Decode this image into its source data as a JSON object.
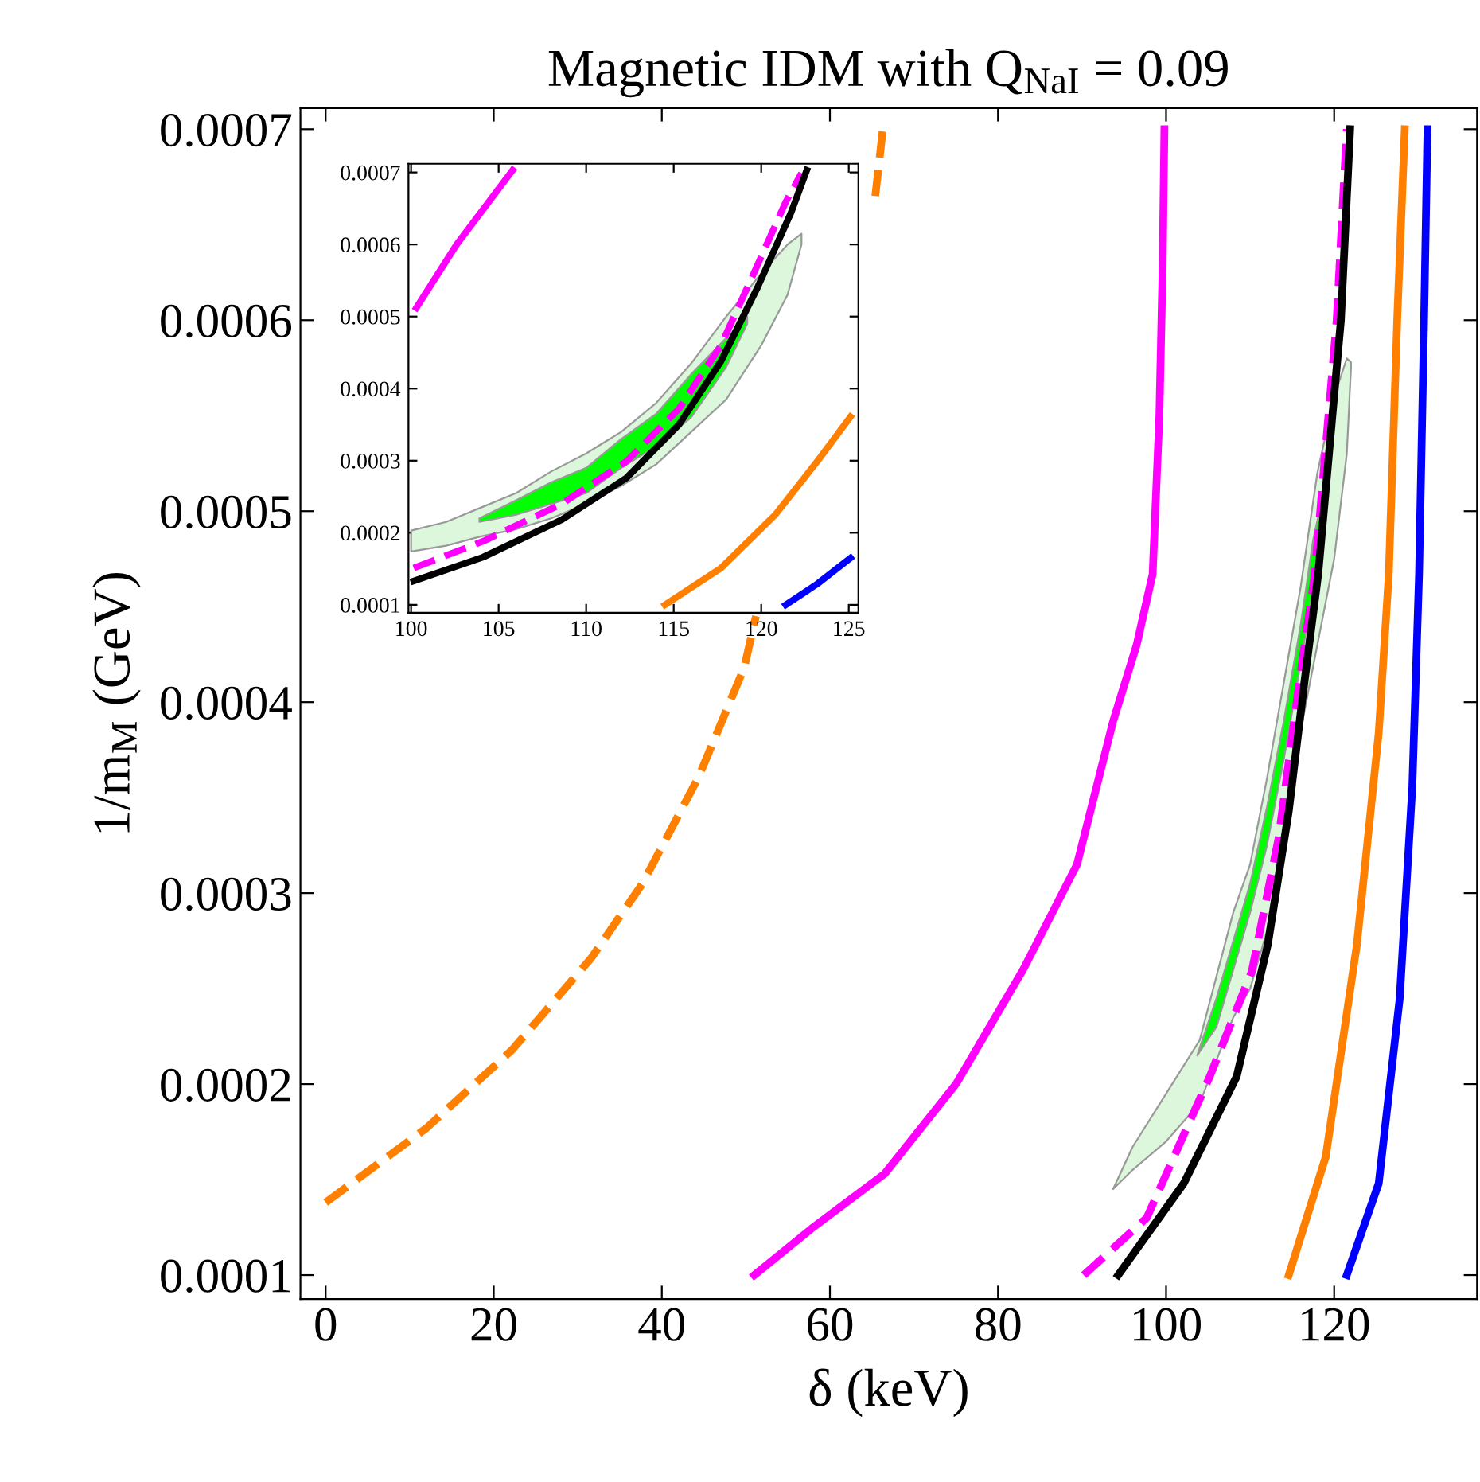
{
  "chart_data": [
    {
      "type": "line",
      "title": "Magnetic IDM with Q$_{NaI}$ = 0.09",
      "xlabel": "δ (keV)",
      "ylabel": "1/m$_{M}$ (GeV)",
      "xlim": [
        -3,
        137
      ],
      "ylim": [
        8.75e-05,
        0.000711
      ],
      "xticks": [
        0,
        20,
        40,
        60,
        80,
        100,
        120
      ],
      "yticks": [
        0.0001,
        0.0002,
        0.0003,
        0.0004,
        0.0005,
        0.0006,
        0.0007
      ],
      "grid": false,
      "legend": false,
      "series": [
        {
          "type": "area",
          "color": "#dcf7dc",
          "x": [
            93.7,
            96,
            100,
            104,
            108,
            110,
            112,
            114,
            116,
            118,
            120,
            121.5,
            122
          ],
          "values": [
            null,
            null,
            null,
            null,
            null,
            null,
            null,
            null,
            null,
            null,
            null,
            null,
            null
          ],
          "lower": [
            0.000145,
            0.000155,
            0.00017,
            0.00019,
            0.000235,
            0.00025,
            0.00028,
            0.00033,
            0.000385,
            0.00043,
            0.000475,
            0.00053,
            0.000575
          ],
          "upper": [
            0.000145,
            0.000167,
            0.000195,
            0.000223,
            0.00029,
            0.000315,
            0.00036,
            0.00041,
            0.00046,
            0.00052,
            0.00056,
            0.00058,
            0.000578
          ]
        },
        {
          "type": "area",
          "color": "#00ff00",
          "x": [
            103.7,
            106,
            108,
            110,
            112,
            114,
            116,
            117.5,
            118.5
          ],
          "values": [
            null,
            null,
            null,
            null,
            null,
            null,
            null,
            null,
            null
          ],
          "lower": [
            0.000215,
            0.00023,
            0.00026,
            0.00029,
            0.000325,
            0.00037,
            0.00042,
            0.00046,
            0.0005
          ],
          "upper": [
            0.000215,
            0.000245,
            0.000275,
            0.000305,
            0.000345,
            0.00039,
            0.00044,
            0.000485,
            0.000505
          ]
        },
        {
          "color": "#ff8000",
          "line_style": "dashed",
          "x": [
            0,
            12,
            22.2,
            31.6,
            37.7,
            44.4,
            49.8,
            51.2,
            58,
            65.4,
            66.3
          ],
          "values": [
            0.000138,
            0.000177,
            0.000218,
            0.000266,
            0.000305,
            0.000361,
            0.000418,
            0.000445,
            null,
            0.000665,
            0.0007
          ]
        },
        {
          "color": "#ff00ff",
          "line_style": "solid",
          "x": [
            51,
            58,
            66.5,
            75,
            83,
            89.4,
            93.7,
            96.5,
            98.4,
            99.2,
            99.6,
            99.8
          ],
          "values": [
            0.0001,
            0.000125,
            0.000153,
            0.0002,
            0.00026,
            0.000315,
            0.00039,
            0.00043,
            0.000467,
            0.00055,
            0.00063,
            0.0007
          ]
        },
        {
          "color": "#ff00ff",
          "line_style": "dashed",
          "x": [
            90.2,
            97.7,
            105.2,
            110.2,
            113.4,
            115.9,
            117.7,
            120.3,
            121.5
          ],
          "values": [
            0.0001,
            0.00013,
            0.000204,
            0.000259,
            0.000329,
            0.000412,
            0.000467,
            0.0006,
            0.0007
          ]
        },
        {
          "color": "#000000",
          "line_style": "solid",
          "x": [
            94.3,
            102.1,
            108.4,
            112.1,
            114.6,
            116.5,
            118.1,
            120.8,
            121.9
          ],
          "values": [
            0.0001,
            0.000148,
            0.000204,
            0.000273,
            0.000343,
            0.000412,
            0.000467,
            0.0006,
            0.0007
          ]
        },
        {
          "color": "#ff8000",
          "line_style": "solid",
          "x": [
            114.6,
            119.0,
            122.7,
            125.3,
            126.5,
            127.5,
            128.4
          ],
          "values": [
            0.0001,
            0.000162,
            0.000273,
            0.000384,
            0.000467,
            0.0006,
            0.0007
          ]
        },
        {
          "color": "#0000ff",
          "line_style": "solid",
          "x": [
            121.5,
            125.3,
            127.8,
            129.3,
            130.1,
            130.7,
            131.1
          ],
          "values": [
            0.0001,
            0.000148,
            0.000245,
            0.000356,
            0.000467,
            0.0006,
            0.0007
          ]
        }
      ]
    },
    {
      "type": "line",
      "xlim": [
        99.85,
        125.55
      ],
      "ylim": [
        8.89e-05,
        0.000712
      ],
      "xticks": [
        100,
        105,
        110,
        115,
        120,
        125
      ],
      "yticks": [
        0.0001,
        0.0002,
        0.0003,
        0.0004,
        0.0005,
        0.0006,
        0.0007
      ],
      "grid": false,
      "legend": false,
      "series": [
        {
          "type": "area",
          "color": "#dcf7dc",
          "x": [
            100,
            102,
            104,
            106,
            108,
            110,
            112,
            114,
            116,
            118,
            120,
            121.5,
            122.3
          ],
          "values": [
            null,
            null,
            null,
            null,
            null,
            null,
            null,
            null,
            null,
            null,
            null,
            null,
            null
          ],
          "lower": [
            0.000174,
            0.000182,
            0.000195,
            0.000205,
            0.00022,
            0.00024,
            0.000265,
            0.000295,
            0.00034,
            0.000385,
            0.00046,
            0.00053,
            0.0006
          ],
          "upper": [
            0.000203,
            0.000215,
            0.000235,
            0.000255,
            0.000285,
            0.00031,
            0.00034,
            0.00038,
            0.000435,
            0.0005,
            0.00056,
            0.0006,
            0.000615
          ]
        },
        {
          "type": "area",
          "color": "#00ff00",
          "x": [
            103.9,
            106,
            108,
            110,
            112,
            114,
            116,
            118,
            119.2
          ],
          "values": [
            null,
            null,
            null,
            null,
            null,
            null,
            null,
            null,
            null
          ],
          "lower": [
            0.000215,
            0.000225,
            0.00024,
            0.000255,
            0.00029,
            0.00032,
            0.00036,
            0.00043,
            0.00049
          ],
          "upper": [
            0.00022,
            0.000245,
            0.00027,
            0.00029,
            0.00033,
            0.000365,
            0.00042,
            0.00047,
            0.0005
          ]
        },
        {
          "color": "#ff00ff",
          "line_style": "solid",
          "x": [
            100.3,
            102.6,
            105.8
          ],
          "values": [
            0.000512,
            0.0006,
            0.000703
          ]
        },
        {
          "color": "#ff00ff",
          "line_style": "dashed",
          "x": [
            100.15,
            104.1,
            108.6,
            112.3,
            115.3,
            117.7,
            119.5,
            121.4,
            122.3
          ],
          "values": [
            0.000151,
            0.000188,
            0.00024,
            0.000299,
            0.000372,
            0.00046,
            0.000556,
            0.000659,
            0.000699
          ]
        },
        {
          "color": "#000000",
          "line_style": "solid",
          "x": [
            100.15,
            104.1,
            108.6,
            112.3,
            115.3,
            117.7,
            119.8,
            121.7,
            122.6
          ],
          "values": [
            0.000133,
            0.000166,
            0.000218,
            0.000276,
            0.00035,
            0.000438,
            0.000541,
            0.000644,
            0.000703
          ]
        },
        {
          "color": "#ff8000",
          "line_style": "solid",
          "x": [
            114.5,
            117.7,
            120.8,
            123.2,
            125.1
          ],
          "values": [
            0.0001,
            0.000151,
            0.000225,
            0.000299,
            0.000361
          ]
        },
        {
          "color": "#0000ff",
          "line_style": "solid",
          "x": [
            121.4,
            123.2,
            125.1
          ],
          "values": [
            0.0001,
            0.000129,
            0.000165
          ]
        }
      ]
    }
  ]
}
